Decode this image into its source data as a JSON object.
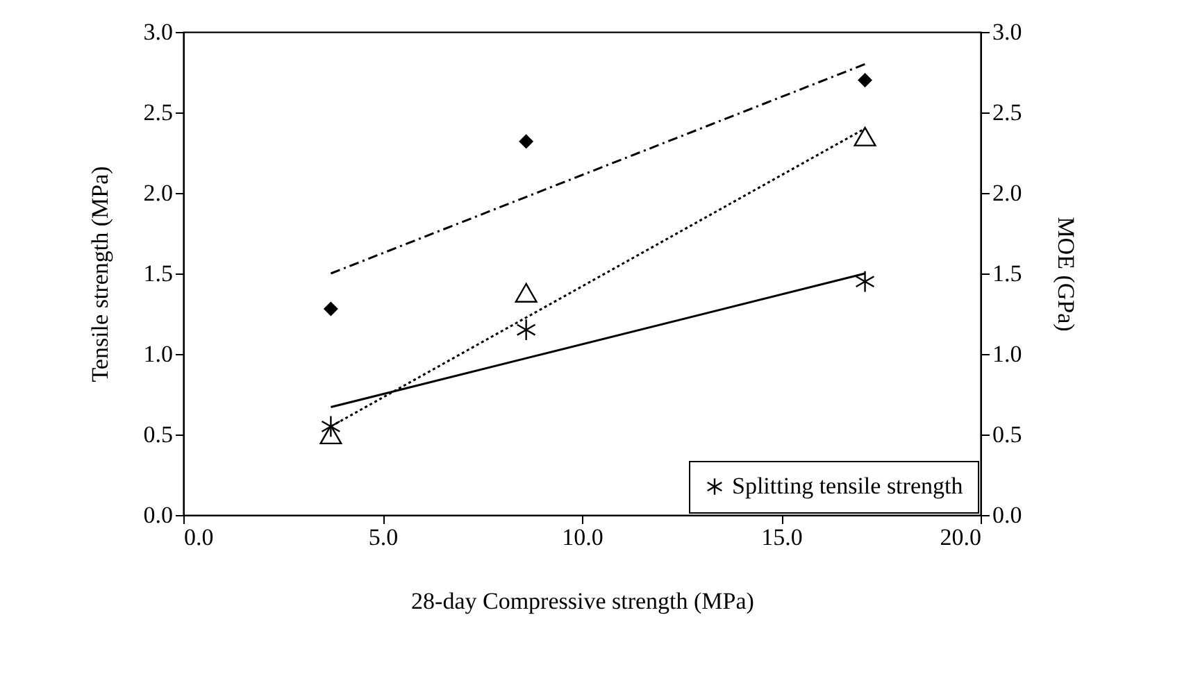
{
  "chart_data": {
    "type": "scatter",
    "xlabel": "28-day Compressive strength (MPa)",
    "ylabel": "Tensile strength (MPa)",
    "y2label": "MOE (GPa)",
    "xlim": [
      0,
      20
    ],
    "xticks": [
      {
        "value": 0,
        "label": "0.0"
      },
      {
        "value": 5,
        "label": "5.0"
      },
      {
        "value": 10,
        "label": "10.0"
      },
      {
        "value": 15,
        "label": "15.0"
      },
      {
        "value": 20,
        "label": "20.0"
      }
    ],
    "ylim": [
      0,
      3
    ],
    "yticks": [
      {
        "value": 0,
        "label": "0.0"
      },
      {
        "value": 0.5,
        "label": "0.5"
      },
      {
        "value": 1,
        "label": "1.0"
      },
      {
        "value": 1.5,
        "label": "1.5"
      },
      {
        "value": 2,
        "label": "2.0"
      },
      {
        "value": 2.5,
        "label": "2.5"
      },
      {
        "value": 3,
        "label": "3.0"
      }
    ],
    "y2lim": [
      0,
      3
    ],
    "y2ticks": [
      {
        "value": 0,
        "label": "0.0"
      },
      {
        "value": 0.5,
        "label": "0.5"
      },
      {
        "value": 1,
        "label": "1.0"
      },
      {
        "value": 1.5,
        "label": "1.5"
      },
      {
        "value": 2,
        "label": "2.0"
      },
      {
        "value": 2.5,
        "label": "2.5"
      },
      {
        "value": 3,
        "label": "3.0"
      }
    ],
    "grid": false,
    "legend": "bottom right",
    "series": [
      {
        "type": "scatter",
        "name": "Splitting tensile strength",
        "color": "#000000",
        "marker": "cross",
        "x": [
          3.7,
          8.6,
          17.1
        ],
        "values": [
          0.55,
          1.15,
          1.45
        ]
      },
      {
        "type": "scatter",
        "color": "#000000",
        "marker": "triangle",
        "x": [
          3.7,
          8.6,
          17.1
        ],
        "values": [
          0.5,
          1.38,
          2.35
        ]
      },
      {
        "type": "scatter",
        "color": "#000000",
        "marker": "diamond",
        "x": [
          3.7,
          8.6,
          17.1
        ],
        "values": [
          1.28,
          2.32,
          2.7
        ]
      },
      {
        "type": "line",
        "color": "#000000",
        "line_style": "solid",
        "x": [
          3.7,
          17.1
        ],
        "values": [
          0.67,
          1.5
        ]
      },
      {
        "type": "line",
        "color": "#000000",
        "line_style": "dotted",
        "x": [
          3.7,
          17.1
        ],
        "values": [
          0.55,
          2.4
        ]
      },
      {
        "type": "line",
        "color": "#000000",
        "line_style": "dashed",
        "x": [
          3.7,
          17.1
        ],
        "values": [
          1.5,
          2.8
        ]
      }
    ]
  }
}
